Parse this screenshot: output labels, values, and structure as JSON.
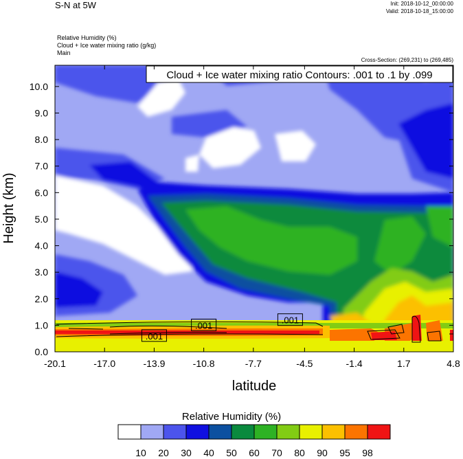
{
  "header": {
    "title": "S-N at 5W",
    "init": "Init: 2018-10-12_00:00:00",
    "valid": "Valid: 2018-10-18_15:00:00",
    "fields": [
      "Relative Humidity   (%)",
      "Cloud + Ice water mixing ratio   (g/kg)",
      "Main"
    ],
    "cross_section": "Cross-Section: (269,231) to (269,485)"
  },
  "chart_data": {
    "type": "heatmap",
    "contour_title": "Cloud + Ice water mixing ratio Contours: .001 to .1 by .099",
    "xlabel": "latitude",
    "ylabel": "Height (km)",
    "x_ticks": [
      "-20.1",
      "-17.0",
      "-13.9",
      "-10.8",
      "-7.7",
      "-4.5",
      "-1.4",
      "1.7",
      "4.8"
    ],
    "y_ticks": [
      "0.0",
      "1.0",
      "2.0",
      "3.0",
      "4.0",
      "5.0",
      "6.0",
      "7.0",
      "8.0",
      "9.0",
      "10.0"
    ],
    "xlim": [
      -20.1,
      4.8
    ],
    "ylim": [
      0,
      10.8
    ],
    "contour_labels": [
      {
        "text": ".001",
        "x": -10.8,
        "y": 1.0
      },
      {
        "text": ".001",
        "x": -13.9,
        "y": 0.6
      },
      {
        "text": ".001",
        "x": -5.4,
        "y": 1.2
      }
    ],
    "colorbar": {
      "title": "Relative Humidity  (%)",
      "levels": [
        "10",
        "20",
        "30",
        "40",
        "50",
        "60",
        "70",
        "80",
        "90",
        "95",
        "98"
      ],
      "colors": [
        "#ffffff",
        "#a0a8f4",
        "#4c54ec",
        "#1010e0",
        "#0c50a0",
        "#0a8a3e",
        "#2eb224",
        "#82cc14",
        "#e8f000",
        "#fcc000",
        "#fc7400",
        "#f01414"
      ]
    }
  }
}
